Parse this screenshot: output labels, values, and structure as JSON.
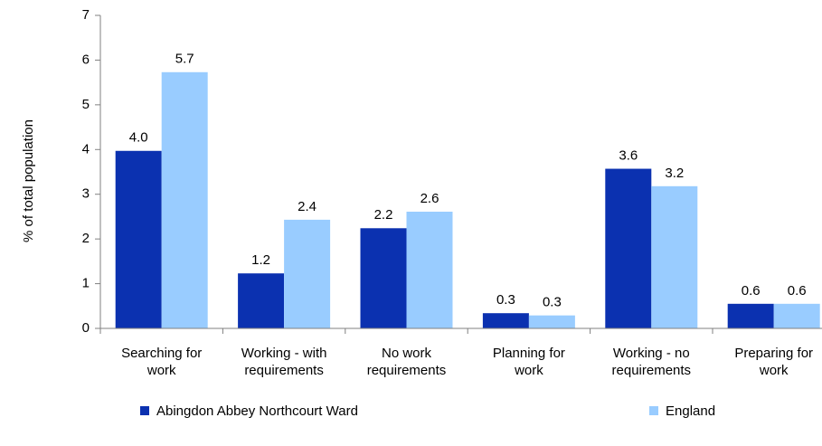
{
  "chart_data": {
    "type": "bar",
    "y_label": "% of total population",
    "categories": [
      "Searching for\nwork",
      "Working - with\nrequirements",
      "No work\nrequirements",
      "Planning for\nwork",
      "Working - no\nrequirements",
      "Preparing for\nwork"
    ],
    "series": [
      {
        "name": "Abingdon Abbey Northcourt Ward",
        "color": "#0b31b0",
        "values": [
          3.97,
          1.23,
          2.24,
          0.34,
          3.57,
          0.55
        ],
        "value_labels": [
          "4.0",
          "1.2",
          "2.2",
          "0.3",
          "3.6",
          "0.6"
        ]
      },
      {
        "name": "England",
        "color": "#99ccff",
        "values": [
          5.73,
          2.43,
          2.61,
          0.29,
          3.18,
          0.55
        ],
        "value_labels": [
          "5.7",
          "2.4",
          "2.6",
          "0.3",
          "3.2",
          "0.6"
        ]
      }
    ],
    "ylim": [
      0,
      7
    ],
    "yticks": [
      0,
      1,
      2,
      3,
      4,
      5,
      6,
      7
    ],
    "grid": false,
    "legend": "bottom"
  }
}
